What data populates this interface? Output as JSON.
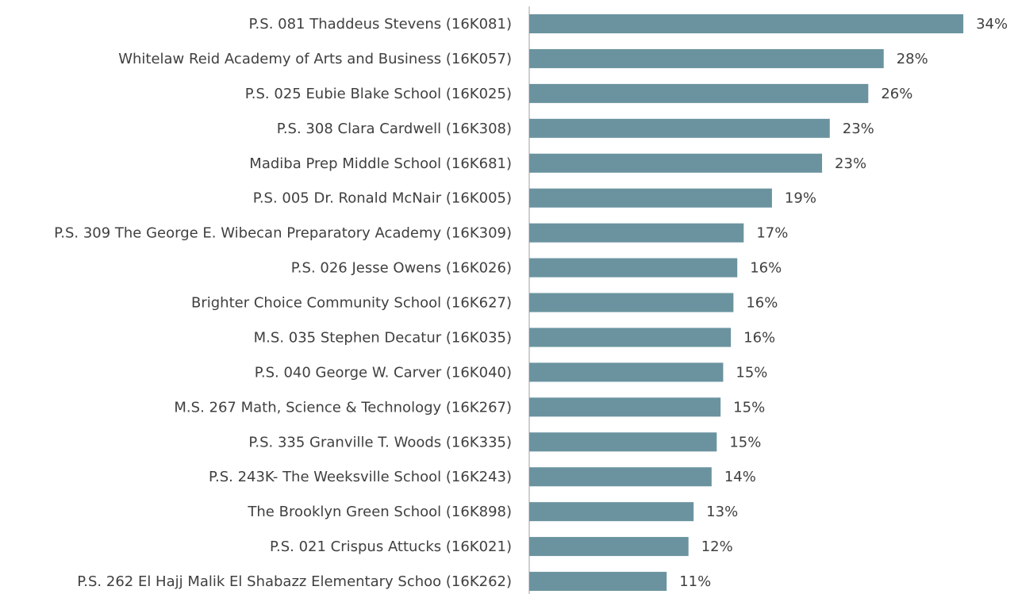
{
  "chart_data": {
    "type": "hbar",
    "categories": [
      "P.S. 081 Thaddeus Stevens (16K081)",
      "Whitelaw Reid Academy of Arts and Business (16K057)",
      "P.S. 025 Eubie Blake School (16K025)",
      "P.S. 308 Clara Cardwell (16K308)",
      "Madiba Prep Middle School (16K681)",
      "P.S. 005 Dr. Ronald McNair (16K005)",
      "P.S. 309 The George E. Wibecan Preparatory Academy (16K309)",
      "P.S. 026 Jesse Owens (16K026)",
      "Brighter Choice Community School (16K627)",
      "M.S. 035 Stephen Decatur (16K035)",
      "P.S. 040 George W. Carver (16K040)",
      "M.S. 267 Math, Science & Technology (16K267)",
      "P.S. 335 Granville T. Woods (16K335)",
      "P.S. 243K- The Weeksville School (16K243)",
      "The Brooklyn Green School (16K898)",
      "P.S. 021 Crispus Attucks (16K021)",
      "P.S. 262 El Hajj Malik El Shabazz Elementary Schoo (16K262)"
    ],
    "values": [
      33.8,
      27.6,
      26.4,
      23.4,
      22.8,
      18.9,
      16.7,
      16.2,
      15.9,
      15.7,
      15.1,
      14.9,
      14.6,
      14.2,
      12.8,
      12.4,
      10.7
    ],
    "value_labels": [
      "34%",
      "28%",
      "26%",
      "23%",
      "23%",
      "19%",
      "17%",
      "16%",
      "16%",
      "16%",
      "15%",
      "15%",
      "15%",
      "14%",
      "13%",
      "12%",
      "11%"
    ],
    "color": "#6a939f",
    "xlim": [
      0,
      35.4
    ]
  }
}
